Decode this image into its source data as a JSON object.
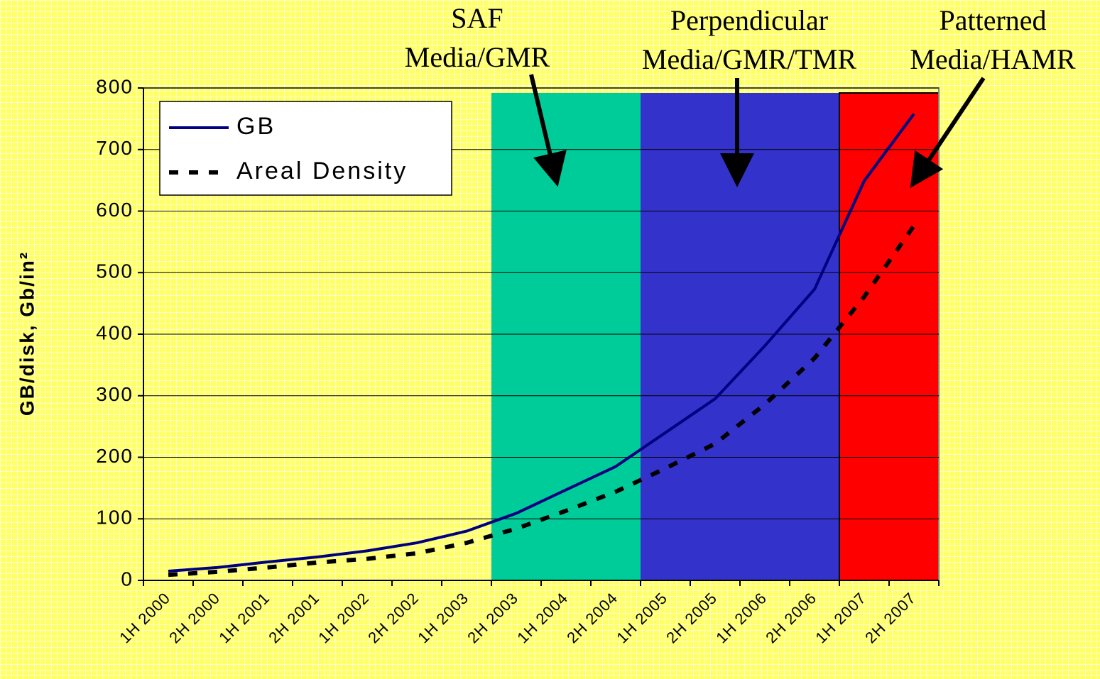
{
  "chart_data": {
    "type": "line",
    "y_label": "GB/disk, Gb/in²",
    "categories": [
      "1H 2000",
      "2H 2000",
      "1H 2001",
      "2H 2001",
      "1H 2002",
      "2H 2002",
      "1H 2003",
      "2H 2003",
      "1H 2004",
      "2H 2004",
      "1H 2005",
      "2H 2005",
      "1H 2006",
      "2H 2006",
      "1H 2007",
      "2H 2007"
    ],
    "series": [
      {
        "name": "GB",
        "color": "#000080",
        "dashed": false,
        "values": [
          15,
          21,
          30,
          38,
          48,
          61,
          80,
          109,
          147,
          185,
          240,
          295,
          381,
          473,
          649,
          758
        ]
      },
      {
        "name": "Areal Density",
        "color": "#000000",
        "dashed": true,
        "values": [
          9,
          14,
          21,
          29,
          35,
          44,
          61,
          84,
          113,
          144,
          182,
          222,
          286,
          361,
          461,
          576
        ]
      }
    ],
    "regions": [
      {
        "lines": [
          "SAF",
          "Media/GMR"
        ],
        "start": "2H 2003",
        "end": "2H 2004",
        "color": "#00cc99"
      },
      {
        "lines": [
          "Perpendicular",
          "Media/GMR/TMR"
        ],
        "start": "1H 2005",
        "end": "2H 2006",
        "color": "#3333cc"
      },
      {
        "lines": [
          "Patterned",
          "Media/HAMR"
        ],
        "start": "1H 2007",
        "end": "2H 2007",
        "color": "#ff0000"
      }
    ],
    "ylim": [
      0,
      800
    ],
    "yticks": [
      0,
      100,
      200,
      300,
      400,
      500,
      600,
      700,
      800
    ],
    "grid": true,
    "legend": "upper left"
  }
}
